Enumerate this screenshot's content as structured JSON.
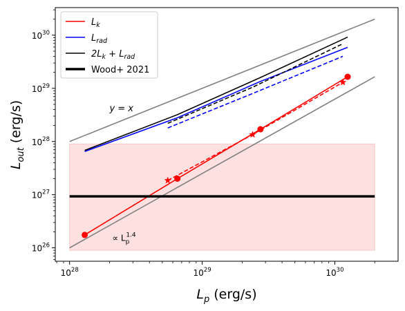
{
  "chart_data": {
    "type": "line",
    "xscale": "log",
    "yscale": "log",
    "xlabel": "L_p (erg/s)",
    "ylabel": "L_out (erg/s)",
    "xlim": [
      7.8e+27,
      3e+30
    ],
    "ylim": [
      5.6e+25,
      3.3e+30
    ],
    "x_ticks": [
      {
        "value": 1e+28,
        "base": "10",
        "exp": "28"
      },
      {
        "value": 1e+29,
        "base": "10",
        "exp": "29"
      },
      {
        "value": 1e+30,
        "base": "10",
        "exp": "30"
      }
    ],
    "y_ticks": [
      {
        "value": 1e+26,
        "base": "10",
        "exp": "26"
      },
      {
        "value": 1e+27,
        "base": "10",
        "exp": "27"
      },
      {
        "value": 1e+28,
        "base": "10",
        "exp": "28"
      },
      {
        "value": 1e+29,
        "base": "10",
        "exp": "29"
      },
      {
        "value": 1e+30,
        "base": "10",
        "exp": "30"
      }
    ],
    "shaded_band": {
      "x": [
        1e+28,
        2e+30
      ],
      "y": [
        9e+25,
        9e+27
      ],
      "color": "#fde0e0"
    },
    "reference_lines": [
      {
        "label": "y = x",
        "x": [
          1e+28,
          2e+30
        ],
        "y": [
          1e+28,
          2e+30
        ],
        "color": "#808080"
      },
      {
        "label": "∝ L_p^1.4",
        "x": [
          1e+28,
          2e+30
        ],
        "y": [
          1e+26,
          1.65e+29
        ],
        "color": "#808080"
      }
    ],
    "series": [
      {
        "name": "L_k",
        "style": "solid",
        "color": "#ff0000",
        "marker": "circle",
        "x": [
          1.3e+28,
          6.5e+28,
          2.75e+29,
          1.25e+30
        ],
        "y": [
          1.75e+26,
          2e+27,
          1.7e+28,
          1.65e+29
        ]
      },
      {
        "name": "L_k (dashed)",
        "style": "dashed",
        "color": "#ff0000",
        "marker": "star",
        "x": [
          5.5e+28,
          2.4e+29,
          1.15e+30
        ],
        "y": [
          1.85e+27,
          1.35e+28,
          1.3e+29
        ]
      },
      {
        "name": "L_rad",
        "style": "solid",
        "color": "#0000ff",
        "marker": "none",
        "x": [
          1.3e+28,
          6.5e+28,
          2.75e+29,
          1.25e+30
        ],
        "y": [
          6.5e+27,
          2.8e+28,
          1.35e+29,
          5.9e+29
        ]
      },
      {
        "name": "L_rad (dashed)",
        "style": "dashed",
        "color": "#0000ff",
        "marker": "none",
        "x": [
          5.5e+28,
          2.4e+29,
          1.15e+30
        ],
        "y": [
          1.8e+28,
          8e+28,
          4e+29
        ]
      },
      {
        "name": "2L_k + L_rad",
        "style": "solid",
        "color": "#000000",
        "marker": "none",
        "x": [
          1.3e+28,
          6.5e+28,
          2.75e+29,
          1.25e+30
        ],
        "y": [
          6.8e+27,
          3.2e+28,
          1.6e+29,
          9.2e+29
        ]
      },
      {
        "name": "2L_k + L_rad (dashed)",
        "style": "dashed",
        "color": "#000000",
        "marker": "none",
        "x": [
          5.5e+28,
          2.4e+29,
          1.15e+30
        ],
        "y": [
          2.2e+28,
          1.05e+29,
          6.9e+29
        ]
      },
      {
        "name": "Wood+ 2021",
        "style": "thick",
        "color": "#000000",
        "marker": "none",
        "x": [
          1e+28,
          2e+30
        ],
        "y": [
          9.3e+26,
          9.3e+26
        ]
      }
    ],
    "legend": {
      "position": "top-left",
      "entries": [
        {
          "base": "L",
          "sub": "k",
          "rest": "",
          "color": "#ff0000",
          "width": 1.5
        },
        {
          "base": "L",
          "sub": "rad",
          "rest": "",
          "color": "#0000ff",
          "width": 1.5
        },
        {
          "base": "2L",
          "sub": "k",
          "rest": " + L",
          "sub2": "rad",
          "color": "#000000",
          "width": 1.5
        },
        {
          "base": "Wood+ 2021",
          "sub": "",
          "rest": "",
          "color": "#000000",
          "width": 3.5
        }
      ]
    },
    "annotations": [
      {
        "text": "y = x",
        "x": 2e+28,
        "y": 3.7e+28
      },
      {
        "text": "∝ L",
        "sub": "p",
        "sup": "1.4",
        "x": 2.1e+28,
        "y": 1.35e+26
      }
    ]
  }
}
